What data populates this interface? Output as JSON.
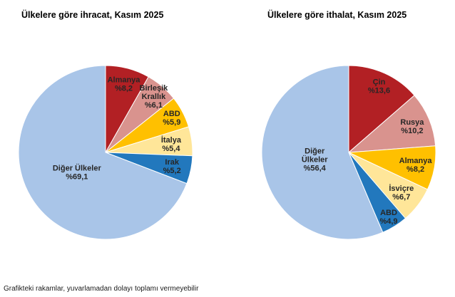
{
  "footnote": "Grafikteki rakamlar, yuvarlamadan dolayı toplamı vermeyebilir",
  "palette": {
    "label_text": "#262626",
    "title_text": "#000000",
    "slice_stroke": "#ffffff"
  },
  "chart_data": [
    {
      "type": "pie",
      "title": "Ülkelere göre ihracat, Kasım 2025",
      "unit": "percent",
      "start_angle_deg": 0,
      "direction": "clockwise",
      "legend_position": "none",
      "slices": [
        {
          "label": "Almanya",
          "value": 8.2,
          "label_lines": [
            "Almanya",
            "%8,2"
          ],
          "color": "#b22024",
          "label_radius": 0.82
        },
        {
          "label": "Birleşik Krallık",
          "value": 6.1,
          "label_lines": [
            "Birleşik",
            "Krallık",
            "%6,1"
          ],
          "color": "#d9938e",
          "label_radius": 0.85
        },
        {
          "label": "ABD",
          "value": 5.9,
          "label_lines": [
            "ABD",
            "%5,9"
          ],
          "color": "#ffc000",
          "label_radius": 0.86
        },
        {
          "label": "İtalya",
          "value": 5.4,
          "label_lines": [
            "İtalya",
            "%5,4"
          ],
          "color": "#ffe699",
          "label_radius": 0.76
        },
        {
          "label": "Irak",
          "value": 5.2,
          "label_lines": [
            "Irak",
            "%5,2"
          ],
          "color": "#2278bd",
          "label_radius": 0.78
        },
        {
          "label": "Diğer Ülkeler",
          "value": 69.1,
          "label_lines": [
            "Diğer Ülkeler",
            "%69,1"
          ],
          "color": "#a9c5e8",
          "label_radius": 0.4
        }
      ]
    },
    {
      "type": "pie",
      "title": "Ülkelere göre ithalat, Kasım 2025",
      "unit": "percent",
      "start_angle_deg": 0,
      "direction": "clockwise",
      "legend_position": "none",
      "slices": [
        {
          "label": "Çin",
          "value": 13.6,
          "label_lines": [
            "Çin",
            "%13,6"
          ],
          "color": "#b22024",
          "label_radius": 0.84
        },
        {
          "label": "Rusya",
          "value": 10.2,
          "label_lines": [
            "Rusya",
            "%10,2"
          ],
          "color": "#d9938e",
          "label_radius": 0.79
        },
        {
          "label": "Almanya",
          "value": 8.2,
          "label_lines": [
            "Almanya",
            "%8,2"
          ],
          "color": "#ffc000",
          "label_radius": 0.78
        },
        {
          "label": "İsviçre",
          "value": 6.7,
          "label_lines": [
            "İsviçre",
            "%6,7"
          ],
          "color": "#ffe699",
          "label_radius": 0.76
        },
        {
          "label": "ABD",
          "value": 4.9,
          "label_lines": [
            "ABD",
            "%4,9"
          ],
          "color": "#2278bd",
          "label_radius": 0.87
        },
        {
          "label": "Diğer Ülkeler",
          "value": 56.4,
          "label_lines": [
            "Diğer",
            "Ülkeler",
            "%56,4"
          ],
          "color": "#a9c5e8",
          "label_radius": 0.4
        }
      ]
    }
  ]
}
